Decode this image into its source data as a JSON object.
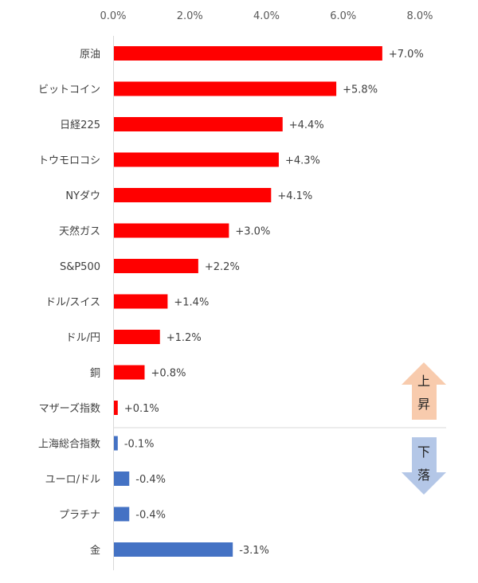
{
  "chart_data": {
    "type": "bar",
    "orientation": "horizontal",
    "xlim": [
      0,
      8
    ],
    "x_ticks": [
      "0.0%",
      "2.0%",
      "4.0%",
      "6.0%",
      "8.0%"
    ],
    "x_tick_values": [
      0,
      2,
      4,
      6,
      8
    ],
    "grid": false,
    "categories": [
      "原油",
      "ビットコイン",
      "日経225",
      "トウモロコシ",
      "NYダウ",
      "天然ガス",
      "S&P500",
      "ドル/スイス",
      "ドル/円",
      "銅",
      "マザーズ指数",
      "上海総合指数",
      "ユーロ/ドル",
      "プラチナ",
      "金"
    ],
    "values": [
      7.0,
      5.8,
      4.4,
      4.3,
      4.1,
      3.0,
      2.2,
      1.4,
      1.2,
      0.8,
      0.1,
      -0.1,
      -0.4,
      -0.4,
      -3.1
    ],
    "data_labels": [
      "+7.0%",
      "+5.8%",
      "+4.4%",
      "+4.3%",
      "+4.1%",
      "+3.0%",
      "+2.2%",
      "+1.4%",
      "+1.2%",
      "+0.8%",
      "+0.1%",
      "-0.1%",
      "-0.4%",
      "-0.4%",
      "-3.1%"
    ],
    "bar_length": "absolute value",
    "colors": {
      "positive": "#ff0000",
      "negative": "#4472c4",
      "up_arrow": "#f8cbad",
      "down_arrow": "#b4c7e7"
    },
    "annotations": {
      "up": [
        "上",
        "昇"
      ],
      "down": [
        "下",
        "落"
      ]
    }
  }
}
